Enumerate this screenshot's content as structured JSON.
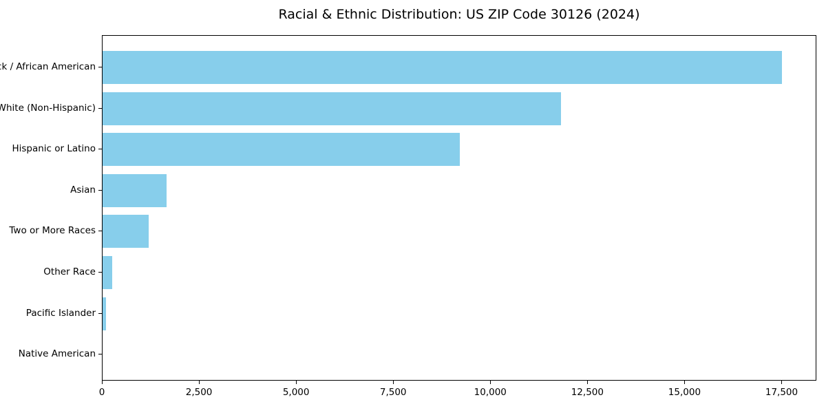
{
  "chart_data": {
    "type": "bar",
    "orientation": "horizontal",
    "title": "Racial & Ethnic Distribution: US ZIP Code 30126 (2024)",
    "categories": [
      "Black / African American",
      "White (Non-Hispanic)",
      "Hispanic or Latino",
      "Asian",
      "Two or More Races",
      "Other Race",
      "Pacific Islander",
      "Native American"
    ],
    "values": [
      17500,
      11800,
      9200,
      1650,
      1180,
      240,
      80,
      0
    ],
    "xlabel": "",
    "ylabel": "",
    "xlim": [
      0,
      18395
    ],
    "x_ticks": [
      0,
      2500,
      5000,
      7500,
      10000,
      12500,
      15000,
      17500
    ],
    "x_tick_labels": [
      "0",
      "2,500",
      "5,000",
      "7,500",
      "10,000",
      "12,500",
      "15,000",
      "17,500"
    ],
    "grid": false,
    "legend": null,
    "bar_color": "#87CEEB",
    "axis_color": "#000000",
    "background_color": "#ffffff"
  }
}
